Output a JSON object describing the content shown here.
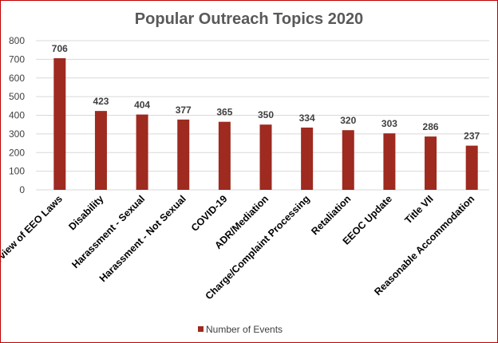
{
  "chart_data": {
    "type": "bar",
    "title": "Popular Outreach Topics 2020",
    "categories": [
      "Overview of EEO Laws",
      "Disability",
      "Harassment - Sexual",
      "Harassment - Not Sexual",
      "COVID-19",
      "ADR/Mediation",
      "Charge/Complaint Processing",
      "Retaliation",
      "EEOC Update",
      "Title VII",
      "Reasonable Accommodation"
    ],
    "series": [
      {
        "name": "Number of Events",
        "values": [
          706,
          423,
          404,
          377,
          365,
          350,
          334,
          320,
          303,
          286,
          237
        ],
        "color": "#9e2a20"
      }
    ],
    "ylim": [
      0,
      800
    ],
    "yticks": [
      0,
      100,
      200,
      300,
      400,
      500,
      600,
      700,
      800
    ],
    "grid": true,
    "grid_color": "#d9d9d9",
    "legend_position": "bottom",
    "frame_color": "#c00000"
  }
}
